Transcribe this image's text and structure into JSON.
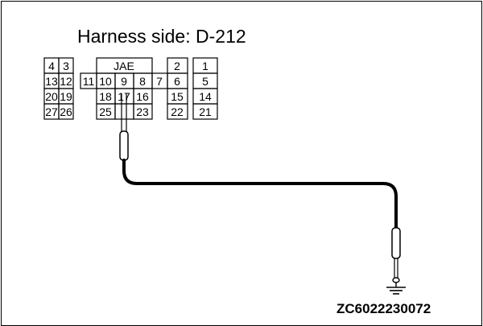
{
  "title": "Harness side: D-212",
  "connector_label": "JAE",
  "figure_code": "ZC6022230072",
  "pins": {
    "p1": "1",
    "p2": "2",
    "p3": "3",
    "p4": "4",
    "p5": "5",
    "p6": "6",
    "p7": "7",
    "p8": "8",
    "p9": "9",
    "p10": "10",
    "p11": "11",
    "p12": "12",
    "p13": "13",
    "p14": "14",
    "p15": "15",
    "p16": "16",
    "p17": "17",
    "p18": "18",
    "p19": "19",
    "p20": "20",
    "p21": "21",
    "p22": "22",
    "p23": "23",
    "p25": "25",
    "p26": "26",
    "p27": "27"
  }
}
